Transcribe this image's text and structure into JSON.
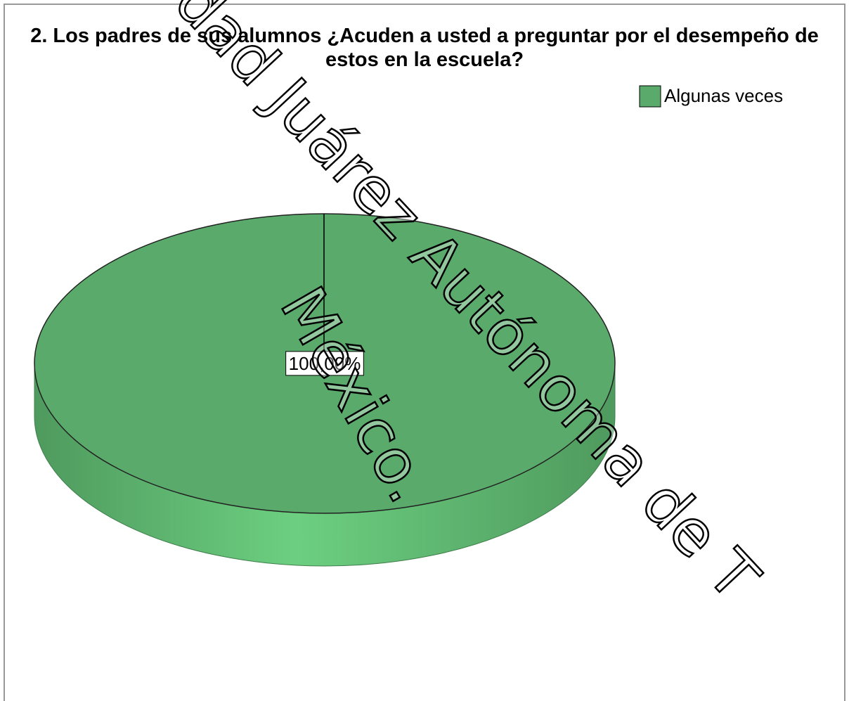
{
  "chart_data": {
    "type": "pie",
    "title": "2. Los padres de sus alumnos ¿Acuden a usted a preguntar por el desempeño de estos en la escuela?",
    "categories": [
      "Algunas veces"
    ],
    "values": [
      100
    ],
    "value_labels": [
      "100,00%"
    ],
    "colors": [
      "#5aab6b"
    ],
    "legend": "top-right",
    "watermark": [
      "dad Juárez Autónoma de T",
      "México."
    ]
  }
}
